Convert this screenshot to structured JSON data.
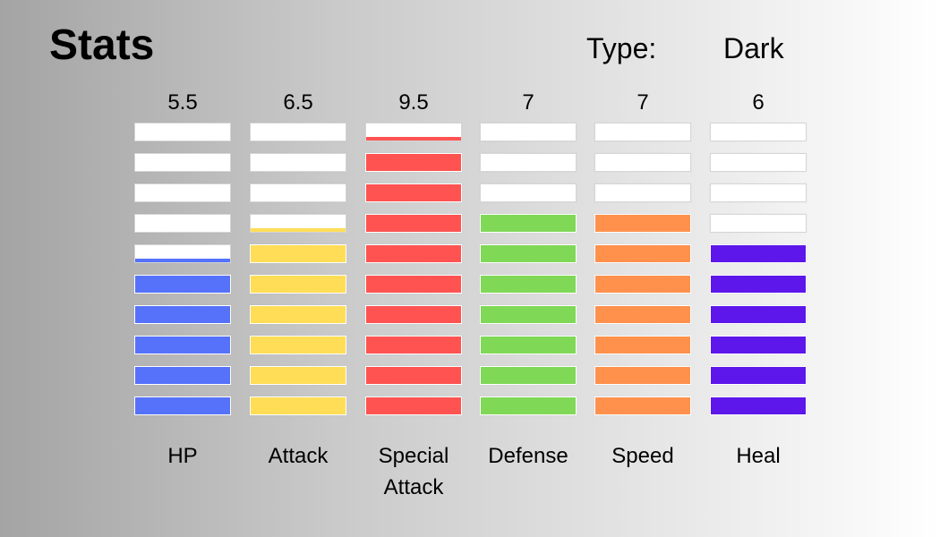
{
  "header": {
    "title": "Stats",
    "type_label": "Type:",
    "type_value": "Dark"
  },
  "chart_data": {
    "type": "bar",
    "max": 10,
    "categories": [
      "HP",
      "Attack",
      "Special Attack",
      "Defense",
      "Speed",
      "Heal"
    ],
    "series": [
      {
        "label": "HP",
        "value_text": "5.5",
        "value": 5.5,
        "color": "#5672fb"
      },
      {
        "label": "Attack",
        "value_text": "6.5",
        "value": 6.5,
        "color": "#ffdd57"
      },
      {
        "label": "Special\nAttack",
        "value_text": "9.5",
        "value": 9.5,
        "color": "#ff5352"
      },
      {
        "label": "Defense",
        "value_text": "7",
        "value": 7,
        "color": "#80d857"
      },
      {
        "label": "Speed",
        "value_text": "7",
        "value": 7,
        "color": "#ff914d"
      },
      {
        "label": "Heal",
        "value_text": "6",
        "value": 6,
        "color": "#5e17eb"
      }
    ]
  }
}
